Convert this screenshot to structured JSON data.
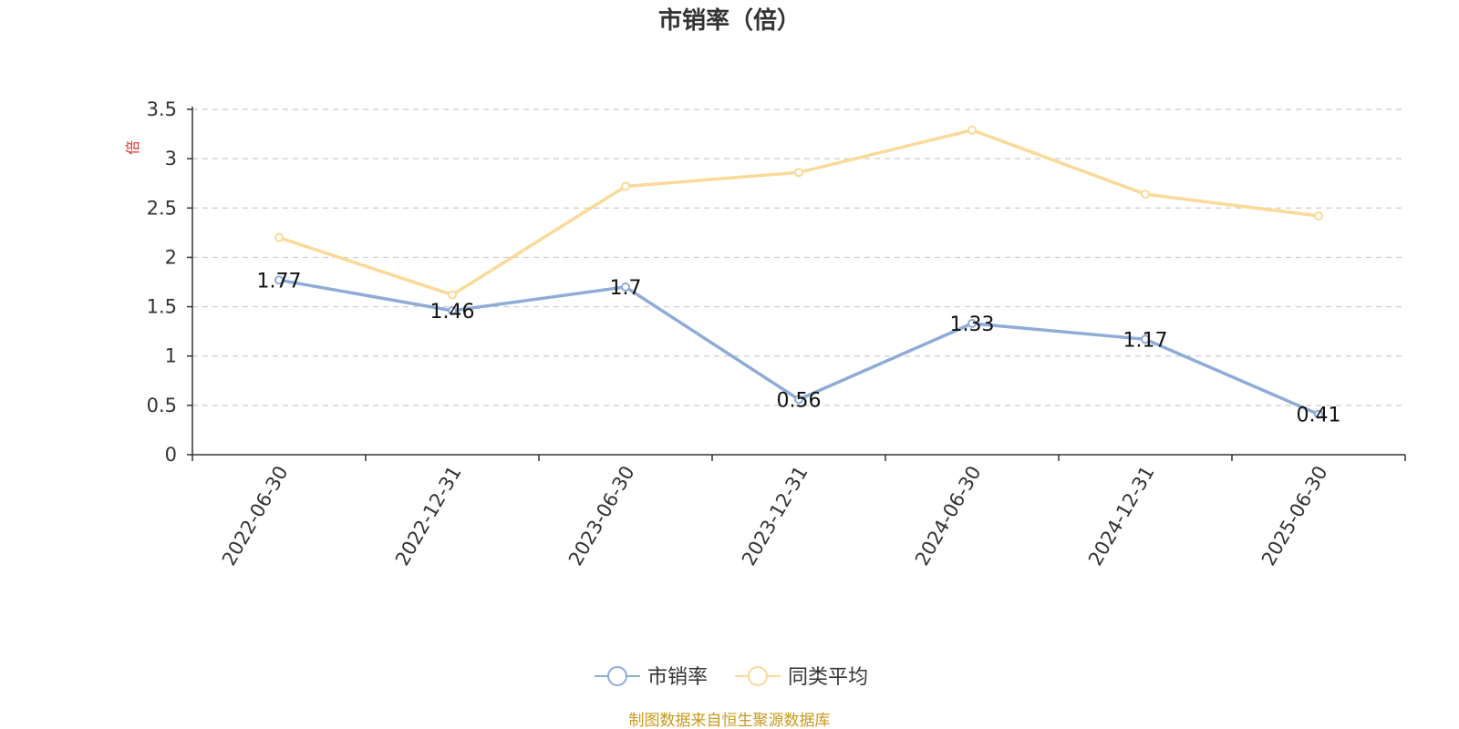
{
  "chart_data": {
    "type": "line",
    "title": "市销率（倍）",
    "ylabel": "倍",
    "ylim": [
      0,
      3.5
    ],
    "yticks": [
      "0",
      "0.5",
      "1",
      "1.5",
      "2",
      "2.5",
      "3",
      "3.5"
    ],
    "categories": [
      "2022-06-30",
      "2022-12-31",
      "2023-06-30",
      "2023-12-31",
      "2024-06-30",
      "2024-12-31",
      "2025-06-30"
    ],
    "series": [
      {
        "name": "市销率",
        "values": [
          1.77,
          1.46,
          1.7,
          0.56,
          1.33,
          1.17,
          0.41
        ],
        "data_labels": [
          "1.77",
          "1.46",
          "1.7",
          "0.56",
          "1.33",
          "1.17",
          "0.41"
        ],
        "color": "#8eacd6"
      },
      {
        "name": "同类平均",
        "values": [
          2.2,
          1.62,
          2.72,
          2.86,
          3.29,
          2.64,
          2.42
        ],
        "color": "#fbd998"
      }
    ],
    "grid": true,
    "legend_position": "bottom-center"
  },
  "source_note": "制图数据来自恒生聚源数据库",
  "colors": {
    "axis": "#333333",
    "grid": "#cccccc",
    "unit": "#e03030",
    "source": "#c89a1e"
  }
}
